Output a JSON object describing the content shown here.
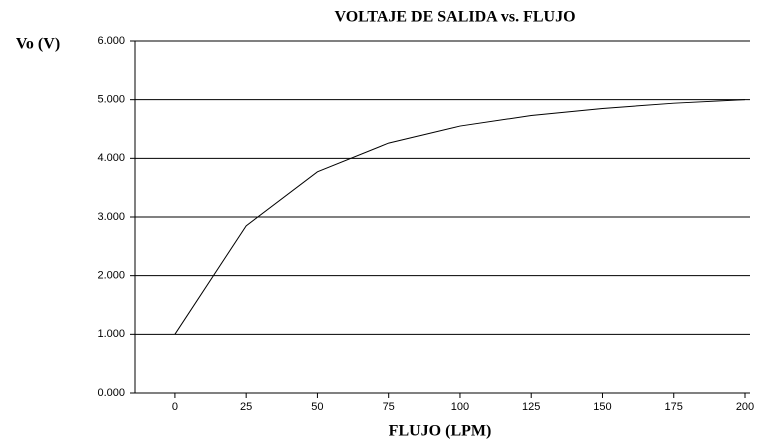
{
  "chart_data": {
    "type": "line",
    "title": "VOLTAJE DE SALIDA vs. FLUJO",
    "y_label": "Vo (V)",
    "x_label": "FLUJO (LPM)",
    "x": [
      0,
      25,
      50,
      75,
      100,
      125,
      150,
      175,
      200
    ],
    "series": [
      {
        "name": "Vo",
        "color": "#000000",
        "values": [
          1.0,
          2.85,
          3.77,
          4.26,
          4.55,
          4.73,
          4.85,
          4.94,
          5.0
        ]
      }
    ],
    "xlim": [
      -14,
      200
    ],
    "xticks": [
      0,
      25,
      50,
      75,
      100,
      125,
      150,
      175,
      200
    ],
    "ylim": [
      0,
      6
    ],
    "yticks": [
      {
        "value": 0,
        "label": "0.000"
      },
      {
        "value": 1,
        "label": "1.000"
      },
      {
        "value": 2,
        "label": "2.000"
      },
      {
        "value": 3,
        "label": "3.000"
      },
      {
        "value": 4,
        "label": "4.000"
      },
      {
        "value": 5,
        "label": "5.000"
      },
      {
        "value": 6,
        "label": "6.000"
      }
    ],
    "grid": true
  }
}
